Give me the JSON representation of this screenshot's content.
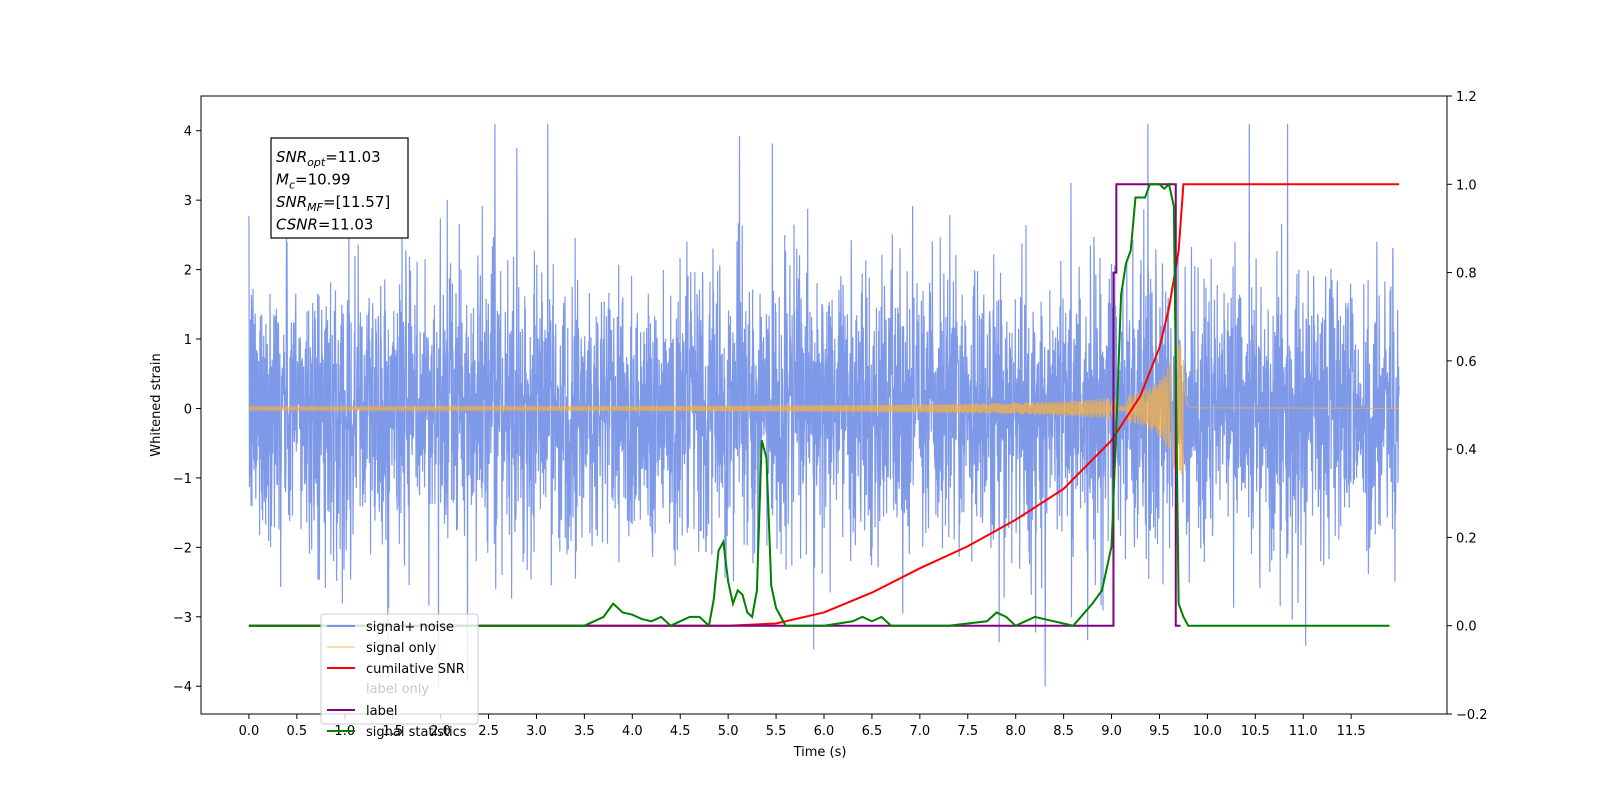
{
  "chart_data": {
    "type": "line",
    "xlabel": "Time (s)",
    "ylabel": "Whitened strain",
    "xlim": [
      -0.5,
      12.5
    ],
    "ylim": [
      -4.4,
      4.5
    ],
    "ylim_right": [
      -0.2,
      1.2
    ],
    "x_ticks": [
      "0.0",
      "0.5",
      "1.0",
      "1.5",
      "2.0",
      "2.5",
      "3.0",
      "3.5",
      "4.0",
      "4.5",
      "5.0",
      "5.5",
      "6.0",
      "6.5",
      "7.0",
      "7.5",
      "8.0",
      "8.5",
      "9.0",
      "9.5",
      "10.0",
      "10.5",
      "11.0",
      "11.5"
    ],
    "y_ticks_left": [
      "−4",
      "−3",
      "−2",
      "−1",
      "0",
      "1",
      "2",
      "3",
      "4"
    ],
    "y_ticks_right": [
      "−0.2",
      "0.0",
      "0.2",
      "0.4",
      "0.6",
      "0.8",
      "1.0",
      "1.2"
    ],
    "grid": false,
    "legend_position": "bottom-left",
    "annotation": {
      "lines": [
        {
          "sym": "SNR",
          "sub": "opt",
          "val": "=11.03"
        },
        {
          "sym": "M",
          "sub": "c",
          "val": "=10.99"
        },
        {
          "sym": "SNR",
          "sub": "MF",
          "val": "=[11.57]"
        },
        {
          "sym": "CSNR",
          "sub": "",
          "val": "=11.03"
        }
      ]
    },
    "series": [
      {
        "name": "signal+ noise",
        "axis": "left",
        "color": "#7894e8",
        "description_values": {
          "x_range": [
            0.0,
            12.0
          ],
          "envelope_min": -4.0,
          "envelope_max": 4.1,
          "typical_amplitude": 2.3
        }
      },
      {
        "name": "signal only",
        "axis": "left",
        "color": "#f5b041",
        "chirp": {
          "start": 0.0,
          "merger": 9.75,
          "peak_amplitude": 0.95,
          "ringdown_end": 9.82
        }
      },
      {
        "name": "cumilative SNR",
        "axis": "right",
        "color": "#ff0000",
        "x": [
          0.0,
          5.0,
          5.5,
          6.0,
          6.5,
          7.0,
          7.5,
          8.0,
          8.5,
          9.0,
          9.3,
          9.5,
          9.6,
          9.7,
          9.75,
          9.76,
          12.0
        ],
        "y": [
          0.0,
          0.0,
          0.005,
          0.03,
          0.075,
          0.13,
          0.18,
          0.24,
          0.31,
          0.42,
          0.52,
          0.63,
          0.72,
          0.85,
          1.0,
          1.0,
          1.0
        ]
      },
      {
        "name": "label",
        "axis": "right",
        "color": "#800080",
        "x": [
          0.0,
          9.02,
          9.02,
          9.05,
          9.05,
          9.67,
          9.67,
          9.72
        ],
        "y": [
          0.0,
          0.0,
          0.8,
          0.8,
          1.0,
          1.0,
          0.0,
          0.0
        ]
      },
      {
        "name": "label only",
        "axis": "right",
        "color": "#c8c8c8",
        "x": [],
        "y": []
      },
      {
        "name": "signal statistics",
        "axis": "right",
        "color": "#008000",
        "x": [
          0.0,
          3.3,
          3.5,
          3.6,
          3.7,
          3.8,
          3.9,
          4.0,
          4.1,
          4.2,
          4.3,
          4.4,
          4.5,
          4.6,
          4.65,
          4.7,
          4.8,
          4.85,
          4.9,
          4.95,
          5.0,
          5.05,
          5.1,
          5.15,
          5.2,
          5.25,
          5.3,
          5.35,
          5.4,
          5.45,
          5.5,
          5.6,
          5.7,
          5.8,
          6.0,
          6.3,
          6.4,
          6.5,
          6.6,
          6.7,
          6.8,
          7.0,
          7.3,
          7.7,
          7.8,
          7.9,
          8.0,
          8.1,
          8.2,
          8.4,
          8.6,
          8.8,
          8.9,
          9.0,
          9.05,
          9.1,
          9.15,
          9.2,
          9.25,
          9.3,
          9.35,
          9.4,
          9.45,
          9.5,
          9.55,
          9.6,
          9.65,
          9.7,
          9.75,
          9.8,
          11.9
        ],
        "y": [
          0.0,
          0.0,
          0.0,
          0.01,
          0.02,
          0.05,
          0.03,
          0.025,
          0.015,
          0.01,
          0.02,
          0.0,
          0.01,
          0.02,
          0.02,
          0.02,
          0.0,
          0.06,
          0.17,
          0.19,
          0.1,
          0.05,
          0.08,
          0.07,
          0.03,
          0.02,
          0.08,
          0.42,
          0.38,
          0.09,
          0.04,
          0.0,
          0.0,
          0.0,
          0.0,
          0.01,
          0.02,
          0.01,
          0.02,
          0.0,
          0.0,
          0.0,
          0.0,
          0.01,
          0.03,
          0.02,
          0.0,
          0.01,
          0.02,
          0.01,
          0.0,
          0.05,
          0.08,
          0.18,
          0.45,
          0.75,
          0.82,
          0.85,
          0.97,
          0.97,
          0.97,
          1.0,
          1.0,
          1.0,
          0.99,
          1.0,
          0.95,
          0.05,
          0.02,
          0.0,
          0.0
        ]
      }
    ]
  }
}
